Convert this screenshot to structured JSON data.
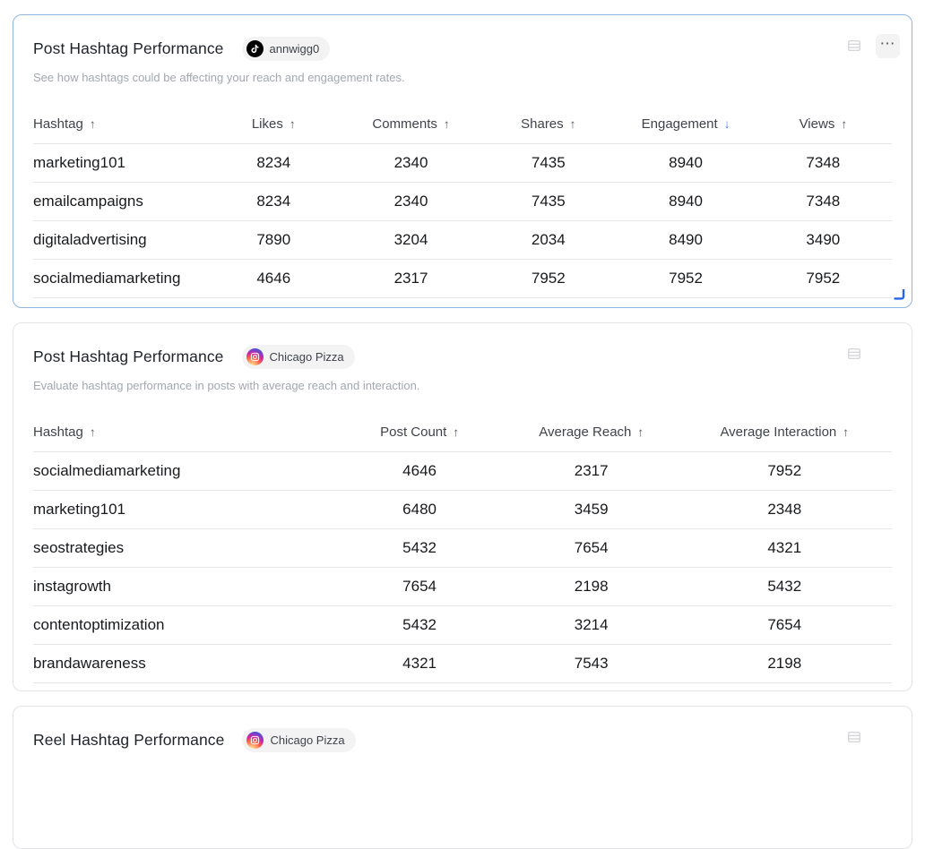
{
  "colors": {
    "selected_card_border": "#8fb5e1",
    "card_border": "#e4e4e7",
    "sort_active_arrow": "#2f80e0",
    "resize_handle": "#2563eb",
    "tiktok_icon_bg": "#010101",
    "instagram_gradient": [
      "#fdf497",
      "#fd5949",
      "#d6249f",
      "#285AEB"
    ],
    "badge_bg": "#f3f3f4"
  },
  "icons": {
    "more": "⋯",
    "sort_up": "↑",
    "sort_down": "↓"
  },
  "cards": [
    {
      "title": "Post Hashtag Performance",
      "account": {
        "platform": "tiktok",
        "name": "annwigg0"
      },
      "subtitle": "See how hashtags could be affecting your reach and engagement rates.",
      "selected": true,
      "columns": [
        {
          "label": "Hashtag",
          "sort": "up",
          "align": "left",
          "width": "20%"
        },
        {
          "label": "Likes",
          "sort": "up",
          "align": "center",
          "width": "16%"
        },
        {
          "label": "Comments",
          "sort": "up",
          "align": "center",
          "width": "16%"
        },
        {
          "label": "Shares",
          "sort": "up",
          "align": "center",
          "width": "16%"
        },
        {
          "label": "Engagement",
          "sort": "down-active",
          "align": "center",
          "width": "16%"
        },
        {
          "label": "Views",
          "sort": "up",
          "align": "center",
          "width": "16%"
        }
      ],
      "rows": [
        [
          "marketing101",
          "8234",
          "2340",
          "7435",
          "8940",
          "7348"
        ],
        [
          "emailcampaigns",
          "8234",
          "2340",
          "7435",
          "8940",
          "7348"
        ],
        [
          "digitaladvertising",
          "7890",
          "3204",
          "2034",
          "8490",
          "3490"
        ],
        [
          "socialmediamarketing",
          "4646",
          "2317",
          "7952",
          "7952",
          "7952"
        ]
      ]
    },
    {
      "title": "Post Hashtag Performance",
      "account": {
        "platform": "instagram",
        "name": "Chicago Pizza"
      },
      "subtitle": "Evaluate hashtag performance in posts with average reach and interaction.",
      "selected": false,
      "columns": [
        {
          "label": "Hashtag",
          "sort": "up",
          "align": "left",
          "width": "35%"
        },
        {
          "label": "Post Count",
          "sort": "up",
          "align": "center",
          "width": "20%"
        },
        {
          "label": "Average Reach",
          "sort": "up",
          "align": "center",
          "width": "20%"
        },
        {
          "label": "Average Interaction",
          "sort": "up",
          "align": "center",
          "width": "25%"
        }
      ],
      "rows": [
        [
          "socialmediamarketing",
          "4646",
          "2317",
          "7952"
        ],
        [
          "marketing101",
          "6480",
          "3459",
          "2348"
        ],
        [
          "seostrategies",
          "5432",
          "7654",
          "4321"
        ],
        [
          "instagrowth",
          "7654",
          "2198",
          "5432"
        ],
        [
          "contentoptimization",
          "5432",
          "3214",
          "7654"
        ],
        [
          "brandawareness",
          "4321",
          "7543",
          "2198"
        ]
      ]
    },
    {
      "title": "Reel Hashtag Performance",
      "account": {
        "platform": "instagram",
        "name": "Chicago Pizza"
      },
      "subtitle": "",
      "selected": false,
      "columns": [],
      "rows": []
    }
  ]
}
